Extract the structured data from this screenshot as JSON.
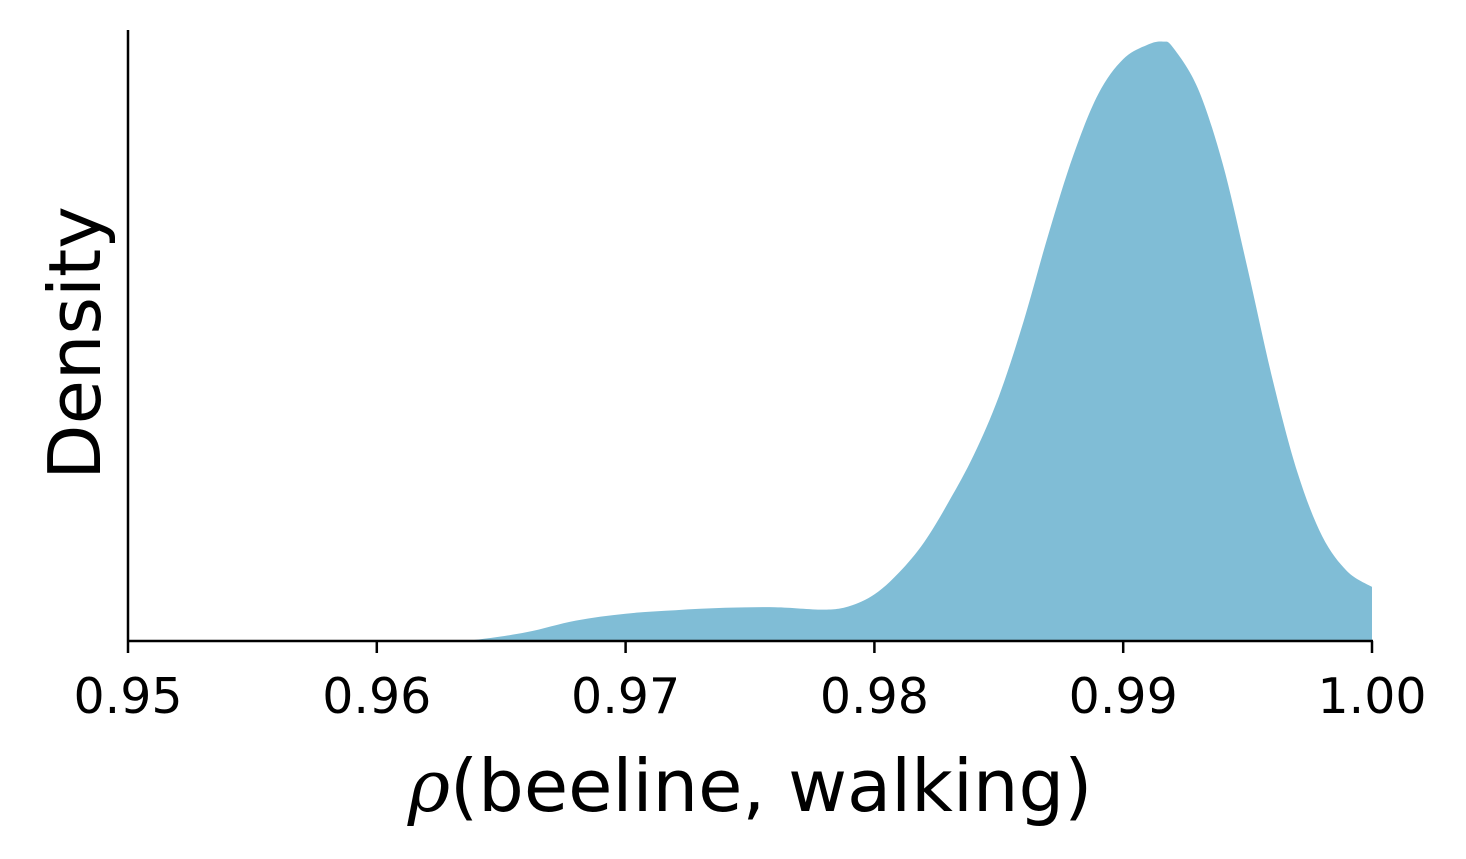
{
  "chart_data": {
    "type": "area",
    "title": "",
    "xlabel_symbol": "ρ",
    "xlabel_rest": "(beeline, walking)",
    "ylabel": "Density",
    "xlim": [
      0.95,
      1.0
    ],
    "ylim": [
      0,
      1.05
    ],
    "xticks": [
      {
        "value": 0.95,
        "label": "0.95"
      },
      {
        "value": 0.96,
        "label": "0.96"
      },
      {
        "value": 0.97,
        "label": "0.97"
      },
      {
        "value": 0.98,
        "label": "0.98"
      },
      {
        "value": 0.99,
        "label": "0.99"
      },
      {
        "value": 1.0,
        "label": "1.00"
      }
    ],
    "series": [
      {
        "name": "density",
        "color": "#80bdd6",
        "x": [
          0.963,
          0.964,
          0.966,
          0.968,
          0.97,
          0.972,
          0.974,
          0.976,
          0.978,
          0.979,
          0.98,
          0.981,
          0.982,
          0.983,
          0.984,
          0.985,
          0.986,
          0.987,
          0.988,
          0.989,
          0.99,
          0.991,
          0.9916,
          0.992,
          0.993,
          0.994,
          0.995,
          0.996,
          0.997,
          0.998,
          0.999,
          1.0
        ],
        "y": [
          0.0,
          0.002,
          0.015,
          0.035,
          0.047,
          0.053,
          0.057,
          0.058,
          0.054,
          0.06,
          0.08,
          0.118,
          0.17,
          0.24,
          0.32,
          0.42,
          0.55,
          0.7,
          0.835,
          0.94,
          1.0,
          1.025,
          1.03,
          1.02,
          0.95,
          0.82,
          0.64,
          0.45,
          0.29,
          0.18,
          0.12,
          0.093
        ]
      }
    ]
  }
}
